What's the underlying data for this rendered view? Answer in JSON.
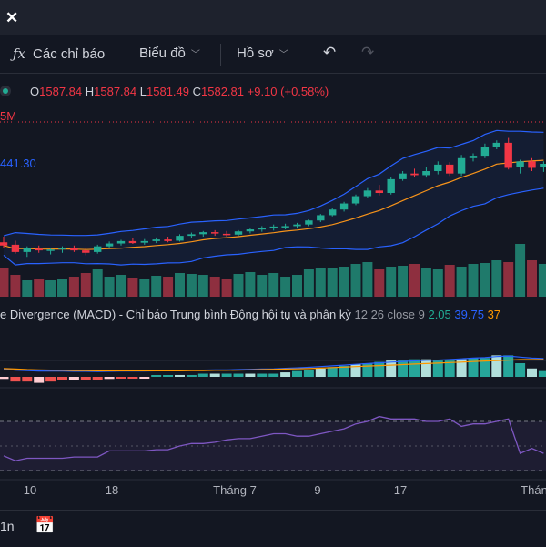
{
  "colors": {
    "up": "#22ab94",
    "down": "#f23645",
    "bb_band": "#2962ff",
    "ma": "#f7931a",
    "macd": "#2962ff",
    "signal": "#ff9800",
    "rsi": "#7e57c2"
  },
  "titlebar": {
    "close_icon": "close-icon"
  },
  "toolbar": {
    "indicators_label": "Các chỉ báo",
    "chart_label": "Biểu đồ",
    "profile_label": "Hồ sơ",
    "undo_icon": "undo-icon",
    "redo_icon": "redo-icon"
  },
  "ohlc": {
    "o_key": "O",
    "o": "1587.84",
    "h_key": "H",
    "h": "1587.84",
    "l_key": "L",
    "l": "1581.49",
    "c_key": "C",
    "c": "1582.81",
    "change": "+9.10 (+0.58%)"
  },
  "labels": {
    "volume_value": "5M",
    "bb_value": "441.30"
  },
  "macd_legend": {
    "name": "e Divergence (MACD) - Chỉ báo Trung bình Động hội tụ và phân kỳ",
    "params": "12 26 close 9",
    "v1": "2.05",
    "v2": "39.75",
    "v3": "37"
  },
  "chart_data": {
    "type": "candlestick",
    "x_labels": [
      "10",
      "18",
      "Tháng 7",
      "9",
      "17",
      "Thán"
    ],
    "candles": [
      {
        "o": 1276,
        "h": 1290,
        "l": 1262,
        "c": 1268
      },
      {
        "o": 1270,
        "h": 1280,
        "l": 1248,
        "c": 1252
      },
      {
        "o": 1252,
        "h": 1266,
        "l": 1240,
        "c": 1262
      },
      {
        "o": 1260,
        "h": 1268,
        "l": 1250,
        "c": 1256
      },
      {
        "o": 1255,
        "h": 1262,
        "l": 1246,
        "c": 1258
      },
      {
        "o": 1259,
        "h": 1266,
        "l": 1250,
        "c": 1262
      },
      {
        "o": 1262,
        "h": 1268,
        "l": 1252,
        "c": 1256
      },
      {
        "o": 1256,
        "h": 1262,
        "l": 1244,
        "c": 1250
      },
      {
        "o": 1252,
        "h": 1270,
        "l": 1248,
        "c": 1266
      },
      {
        "o": 1266,
        "h": 1278,
        "l": 1262,
        "c": 1273
      },
      {
        "o": 1273,
        "h": 1282,
        "l": 1268,
        "c": 1279
      },
      {
        "o": 1279,
        "h": 1286,
        "l": 1272,
        "c": 1274
      },
      {
        "o": 1275,
        "h": 1284,
        "l": 1270,
        "c": 1279
      },
      {
        "o": 1279,
        "h": 1288,
        "l": 1274,
        "c": 1283
      },
      {
        "o": 1283,
        "h": 1290,
        "l": 1276,
        "c": 1279
      },
      {
        "o": 1280,
        "h": 1296,
        "l": 1278,
        "c": 1292
      },
      {
        "o": 1292,
        "h": 1300,
        "l": 1286,
        "c": 1296
      },
      {
        "o": 1296,
        "h": 1304,
        "l": 1290,
        "c": 1301
      },
      {
        "o": 1301,
        "h": 1306,
        "l": 1292,
        "c": 1298
      },
      {
        "o": 1297,
        "h": 1304,
        "l": 1290,
        "c": 1294
      },
      {
        "o": 1295,
        "h": 1306,
        "l": 1292,
        "c": 1303
      },
      {
        "o": 1303,
        "h": 1310,
        "l": 1298,
        "c": 1308
      },
      {
        "o": 1308,
        "h": 1316,
        "l": 1302,
        "c": 1311
      },
      {
        "o": 1311,
        "h": 1320,
        "l": 1305,
        "c": 1315
      },
      {
        "o": 1315,
        "h": 1322,
        "l": 1308,
        "c": 1316
      },
      {
        "o": 1316,
        "h": 1324,
        "l": 1310,
        "c": 1320
      },
      {
        "o": 1320,
        "h": 1332,
        "l": 1316,
        "c": 1330
      },
      {
        "o": 1330,
        "h": 1346,
        "l": 1326,
        "c": 1343
      },
      {
        "o": 1343,
        "h": 1360,
        "l": 1340,
        "c": 1357
      },
      {
        "o": 1357,
        "h": 1376,
        "l": 1352,
        "c": 1372
      },
      {
        "o": 1372,
        "h": 1394,
        "l": 1368,
        "c": 1390
      },
      {
        "o": 1390,
        "h": 1410,
        "l": 1386,
        "c": 1404
      },
      {
        "o": 1404,
        "h": 1418,
        "l": 1392,
        "c": 1398
      },
      {
        "o": 1398,
        "h": 1438,
        "l": 1394,
        "c": 1432
      },
      {
        "o": 1432,
        "h": 1452,
        "l": 1428,
        "c": 1446
      },
      {
        "o": 1446,
        "h": 1458,
        "l": 1438,
        "c": 1442
      },
      {
        "o": 1442,
        "h": 1462,
        "l": 1436,
        "c": 1452
      },
      {
        "o": 1452,
        "h": 1476,
        "l": 1444,
        "c": 1468
      },
      {
        "o": 1468,
        "h": 1474,
        "l": 1440,
        "c": 1446
      },
      {
        "o": 1446,
        "h": 1492,
        "l": 1440,
        "c": 1484
      },
      {
        "o": 1484,
        "h": 1496,
        "l": 1476,
        "c": 1490
      },
      {
        "o": 1490,
        "h": 1520,
        "l": 1484,
        "c": 1512
      },
      {
        "o": 1512,
        "h": 1528,
        "l": 1506,
        "c": 1522
      },
      {
        "o": 1522,
        "h": 1534,
        "l": 1456,
        "c": 1460
      },
      {
        "o": 1462,
        "h": 1480,
        "l": 1446,
        "c": 1476
      },
      {
        "o": 1476,
        "h": 1484,
        "l": 1452,
        "c": 1460
      },
      {
        "o": 1462,
        "h": 1476,
        "l": 1450,
        "c": 1470
      }
    ],
    "volume": [
      32,
      24,
      18,
      20,
      18,
      19,
      22,
      26,
      30,
      22,
      24,
      21,
      20,
      23,
      22,
      26,
      25,
      24,
      22,
      20,
      25,
      27,
      24,
      26,
      22,
      24,
      30,
      32,
      31,
      33,
      36,
      38,
      30,
      33,
      34,
      36,
      31,
      30,
      35,
      33,
      36,
      37,
      40,
      38,
      58,
      40,
      36
    ],
    "macd": [
      2,
      -2,
      -4,
      -6,
      -6,
      -6,
      -7,
      -7,
      -8,
      -7,
      -6,
      -6,
      -6,
      -5,
      -5,
      -4,
      -3,
      -2,
      -1,
      -1,
      0,
      1,
      2,
      3,
      5,
      7,
      9,
      12,
      15,
      18,
      21,
      24,
      27,
      30,
      32,
      35,
      37,
      38,
      40,
      43,
      46,
      48,
      52,
      54,
      50,
      46,
      44
    ],
    "signal": [
      4,
      2,
      0,
      -1,
      -2,
      -3,
      -4,
      -4,
      -5,
      -5,
      -5,
      -5,
      -5,
      -5,
      -5,
      -5,
      -4,
      -4,
      -3,
      -3,
      -2,
      -1,
      0,
      1,
      2,
      3,
      4,
      6,
      8,
      10,
      12,
      14,
      16,
      18,
      20,
      22,
      24,
      26,
      28,
      30,
      32,
      34,
      36,
      38,
      40,
      40,
      40
    ],
    "rsi": [
      42,
      38,
      40,
      40,
      40,
      40,
      41,
      41,
      41,
      46,
      46,
      46,
      46,
      47,
      47,
      50,
      52,
      52,
      53,
      55,
      56,
      56,
      58,
      60,
      60,
      58,
      58,
      60,
      62,
      64,
      68,
      70,
      74,
      72,
      72,
      72,
      70,
      70,
      72,
      66,
      68,
      68,
      70,
      72,
      44,
      48,
      44
    ]
  }
}
